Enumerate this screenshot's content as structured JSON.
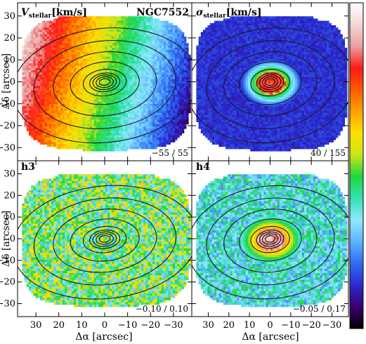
{
  "figure": {
    "ylabel": "Δδ [arcsec]",
    "xlabel": "Δα [arcsec]",
    "colorbar_stops": [
      "#000000",
      "#3a006e",
      "#2a2ad0",
      "#2f6cf0",
      "#5db4ff",
      "#8fe8ff",
      "#33e1b0",
      "#1fd63a",
      "#cfe41a",
      "#ffe000",
      "#ffa000",
      "#ff5a00",
      "#ff1a1a",
      "#e8a0a0",
      "#f4d6d6",
      "#ffffff"
    ]
  },
  "chart_data": [
    {
      "type": "heatmap",
      "panel": "top-left",
      "quantity_main": "V",
      "quantity_sub": "stellar",
      "quantity_unit": "[km/s]",
      "object": "NGC7552",
      "range_text": "−55 / 55",
      "xlim": [
        38,
        -38
      ],
      "ylim": [
        -36,
        36
      ],
      "xticks": [
        30,
        20,
        10,
        0,
        -10,
        -20,
        -30
      ],
      "yticks": [
        30,
        20,
        10,
        0,
        -10,
        -20,
        -30
      ],
      "tick_labels": [
        "30",
        "20",
        "10",
        "0",
        "−10",
        "−20",
        "−30"
      ],
      "cmap_from": 0.9,
      "cmap_to": 0.1,
      "noise": 0.08
    },
    {
      "type": "heatmap",
      "panel": "top-right",
      "quantity_main": "σ",
      "quantity_sub": "stellar",
      "quantity_unit": "[km/s]",
      "range_text": "40 / 155",
      "xlim": [
        38,
        -38
      ],
      "ylim": [
        -36,
        36
      ],
      "xticks": [
        30,
        20,
        10,
        0,
        -10,
        -20,
        -30
      ],
      "yticks": [
        30,
        20,
        10,
        0,
        -10,
        -20,
        -30
      ],
      "tick_labels": [
        "30",
        "20",
        "10",
        "0",
        "−10",
        "−20",
        "−30"
      ],
      "cmap_bg": 0.14,
      "cmap_center": 0.8,
      "noise": 0.06
    },
    {
      "type": "heatmap",
      "panel": "bottom-left",
      "quantity_main": "h3",
      "range_text": "−0.10 / 0.10",
      "xlim": [
        38,
        -38
      ],
      "ylim": [
        -36,
        36
      ],
      "xticks": [
        30,
        20,
        10,
        0,
        -10,
        -20,
        -30
      ],
      "yticks": [
        30,
        20,
        10,
        0,
        -10,
        -20,
        -30
      ],
      "tick_labels": [
        "30",
        "20",
        "10",
        "0",
        "−10",
        "−20",
        "−30"
      ],
      "cmap_bg": 0.45,
      "noise": 0.35
    },
    {
      "type": "heatmap",
      "panel": "bottom-right",
      "quantity_main": "h4",
      "range_text": "−0.05 / 0.17",
      "xlim": [
        38,
        -38
      ],
      "ylim": [
        -36,
        36
      ],
      "xticks": [
        30,
        20,
        10,
        0,
        -10,
        -20,
        -30
      ],
      "yticks": [
        30,
        20,
        10,
        0,
        -10,
        -20,
        -30
      ],
      "tick_labels": [
        "30",
        "20",
        "10",
        "0",
        "−10",
        "−20",
        "−30"
      ],
      "cmap_bg": 0.35,
      "cmap_center": 0.88,
      "noise": 0.25
    }
  ]
}
